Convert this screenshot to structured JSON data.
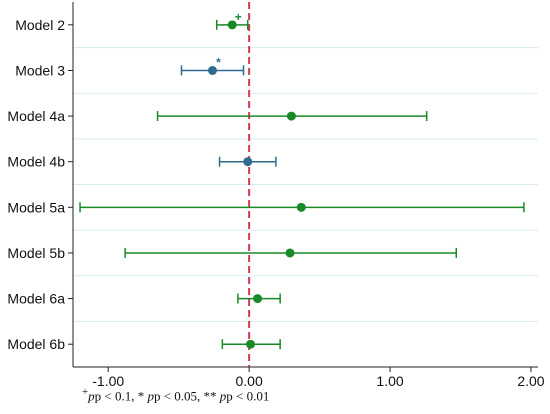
{
  "chart_data": {
    "type": "forest",
    "categories": [
      "Model 2",
      "Model 3",
      "Model 4a",
      "Model 4b",
      "Model 5a",
      "Model 5b",
      "Model 6a",
      "Model 6b"
    ],
    "estimates": [
      -0.12,
      -0.26,
      0.3,
      -0.01,
      0.37,
      0.29,
      0.06,
      0.01
    ],
    "ci_lower": [
      -0.23,
      -0.48,
      -0.65,
      -0.21,
      -1.2,
      -0.88,
      -0.08,
      -0.19
    ],
    "ci_upper": [
      -0.01,
      -0.04,
      1.26,
      0.19,
      1.95,
      1.47,
      0.22,
      0.22
    ],
    "significance": [
      "+",
      "*",
      "",
      "",
      "",
      "",
      "",
      ""
    ],
    "colors": [
      "#1a8a28",
      "#2f6b8e",
      "#1a8a28",
      "#2f6b8e",
      "#1a8a28",
      "#1a8a28",
      "#1a8a28",
      "#1a8a28"
    ],
    "xlim": [
      -1.25,
      2.05
    ],
    "xticks": [
      -1.0,
      0.0,
      1.0,
      2.0
    ],
    "xtick_labels": [
      "-1.00",
      "0.00",
      "1.00",
      "2.00"
    ],
    "reference_line": 0,
    "reference_color": "#d23a4e",
    "grid": true,
    "grid_color": "#d8ecef"
  },
  "footnote": {
    "plus": "+",
    "text1": "p < 0.1, * ",
    "text2": "p < 0.05, ** ",
    "text3": "p < 0.01",
    "p": "p"
  }
}
